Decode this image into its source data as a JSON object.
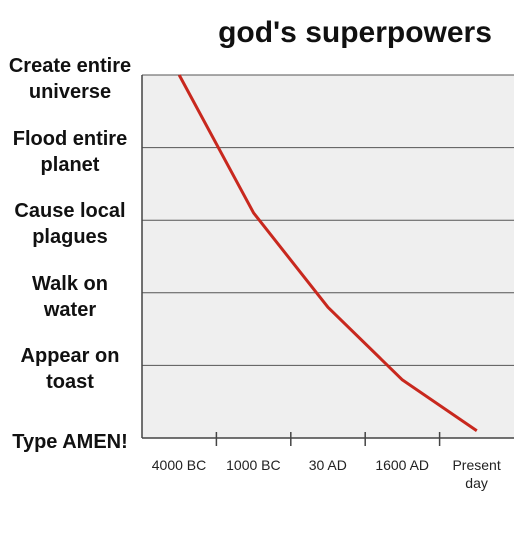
{
  "chart_data": {
    "type": "line",
    "title": "god's superpowers",
    "categories": [
      "4000 BC",
      "1000 BC",
      "30 AD",
      "1600 AD",
      "Present day"
    ],
    "values": [
      5,
      3.1,
      1.8,
      0.8,
      0.1
    ],
    "color": "#c8281e",
    "ylim": [
      0,
      5
    ],
    "yticks": [
      {
        "value": 0,
        "label": "Type AMEN!"
      },
      {
        "value": 1,
        "label": "Appear on toast"
      },
      {
        "value": 2,
        "label": "Walk on water"
      },
      {
        "value": 3,
        "label": "Cause local plagues"
      },
      {
        "value": 4,
        "label": "Flood entire planet"
      },
      {
        "value": 5,
        "label": "Create entire universe"
      }
    ],
    "grid": true
  }
}
